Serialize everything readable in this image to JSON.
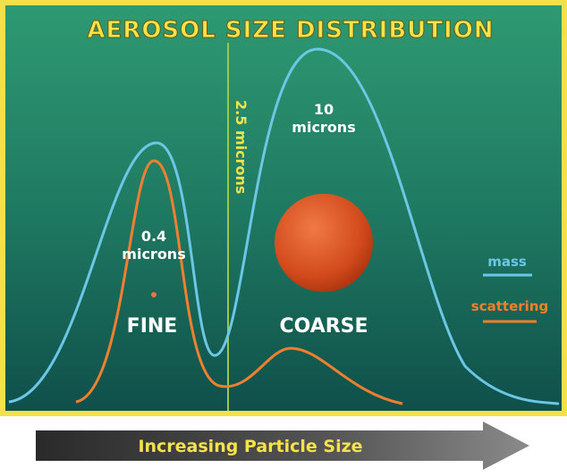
{
  "header": {
    "title": "AEROSOL SIZE DISTRIBUTION"
  },
  "divider": {
    "label": "2.5 microns"
  },
  "peaks": [
    {
      "lines": [
        "0.4",
        "microns"
      ]
    },
    {
      "lines": [
        "10",
        "microns"
      ]
    }
  ],
  "modes": [
    "FINE",
    "COARSE"
  ],
  "legend": [
    {
      "label": "mass"
    },
    {
      "label": "scattering"
    }
  ],
  "arrow": {
    "label": "Increasing Particle Size"
  }
}
